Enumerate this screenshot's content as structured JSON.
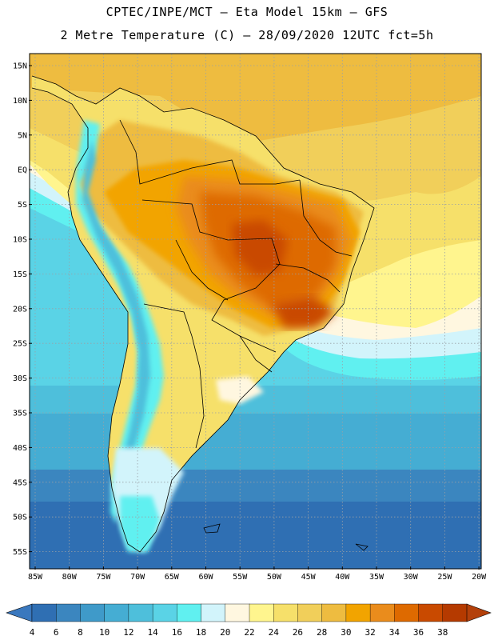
{
  "header": {
    "line1": "CPTEC/INPE/MCT –  Eta Model 15km – GFS",
    "line2": "2 Metre Temperature (C) – 28/09/2020 12UTC fct=5h"
  },
  "map": {
    "lat_labels": [
      "15N",
      "10N",
      "5N",
      "EQ",
      "5S",
      "10S",
      "15S",
      "20S",
      "25S",
      "30S",
      "35S",
      "40S",
      "45S",
      "50S",
      "55S"
    ],
    "lon_labels": [
      "85W",
      "80W",
      "75W",
      "70W",
      "65W",
      "60W",
      "55W",
      "50W",
      "45W",
      "40W",
      "35W",
      "30W",
      "25W",
      "20W"
    ]
  },
  "colorbar": {
    "ticks": [
      "4",
      "6",
      "8",
      "10",
      "12",
      "14",
      "16",
      "18",
      "20",
      "22",
      "24",
      "26",
      "28",
      "30",
      "32",
      "34",
      "36",
      "38"
    ],
    "colors": [
      "#2f6fb3",
      "#3b86bf",
      "#3f9ac9",
      "#45add3",
      "#4ebfdb",
      "#5ad3e6",
      "#60f0f0",
      "#d2f4fb",
      "#fff7e0",
      "#fff58e",
      "#f6e06a",
      "#f1cf5a",
      "#eebc40",
      "#f2a400",
      "#ea8c1c",
      "#de6a00",
      "#c94a00",
      "#b53a00"
    ],
    "under_color": "#3a78be",
    "over_color": "#b4400a"
  }
}
